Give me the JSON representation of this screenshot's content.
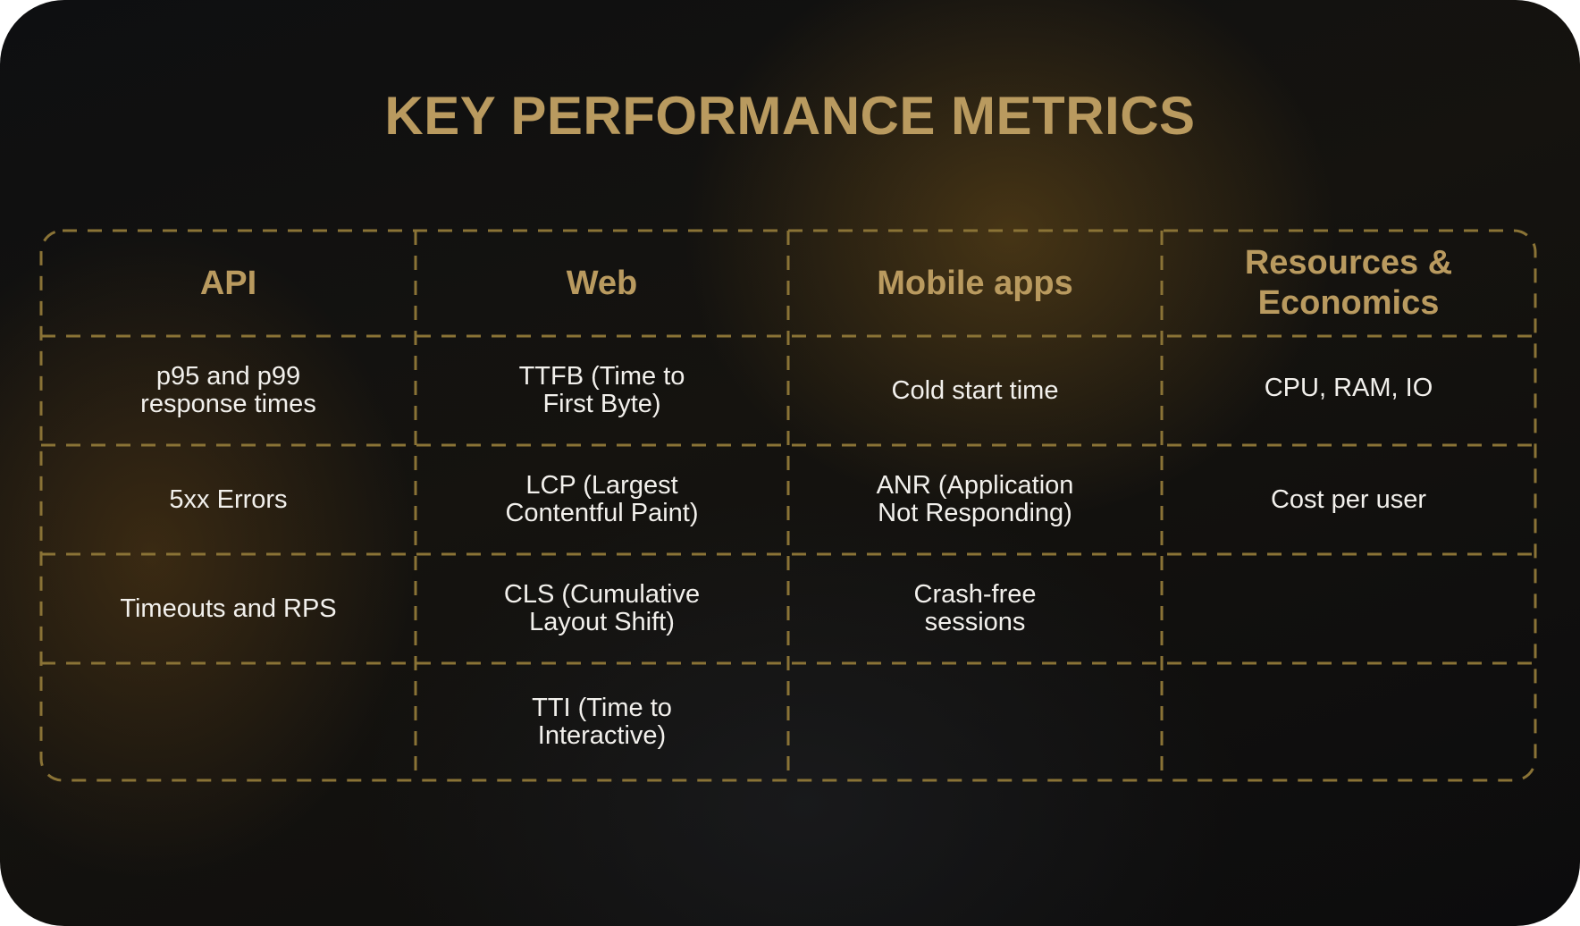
{
  "title": "KEY PERFORMANCE METRICS",
  "colors": {
    "accent": "#b99a5f",
    "text": "#f2f0ec",
    "background": "#0e0f11",
    "dashed_border": "#8a7336"
  },
  "columns": [
    {
      "header": "API",
      "cells": [
        "p95 and p99\nresponse times",
        "5xx Errors",
        "Timeouts and RPS",
        ""
      ]
    },
    {
      "header": "Web",
      "cells": [
        "TTFB (Time to\nFirst Byte)",
        "LCP (Largest\nContentful Paint)",
        "CLS (Cumulative\nLayout Shift)",
        "TTI (Time to\nInteractive)"
      ]
    },
    {
      "header": "Mobile apps",
      "cells": [
        "Cold start time",
        "ANR (Application\nNot Responding)",
        "Crash-free\nsessions",
        ""
      ]
    },
    {
      "header": "Resources &\nEconomics",
      "cells": [
        "CPU, RAM, IO",
        "Cost per user",
        "",
        ""
      ]
    }
  ]
}
